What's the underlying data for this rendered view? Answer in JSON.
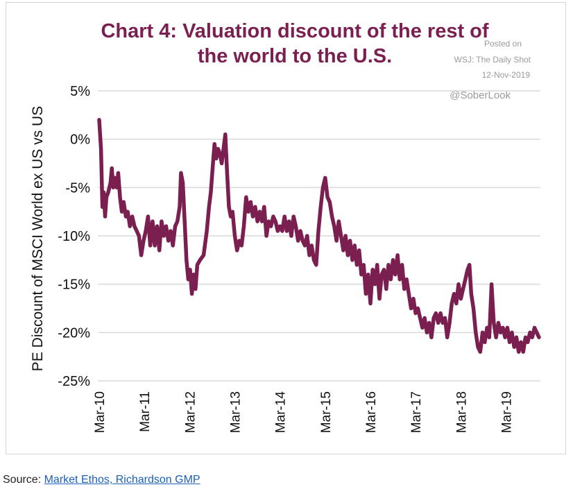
{
  "chart_data": {
    "type": "line",
    "title_lines": [
      "Chart 4: Valuation discount of the rest of",
      "the world to the U.S."
    ],
    "watermark": {
      "posted": "Posted on",
      "outlet": "WSJ: The Daily Shot",
      "date": "12-Nov-2019",
      "handle": "@SoberLook"
    },
    "ylabel": "PE Discount of MSCI World ex US vs US",
    "xlabel": "",
    "ylim": [
      -25,
      5
    ],
    "xlim": [
      2010.17,
      2019.9
    ],
    "y_ticks": [
      5,
      0,
      -5,
      -10,
      -15,
      -20,
      -25
    ],
    "y_tick_labels": [
      "5%",
      "0%",
      "-5%",
      "-10%",
      "-15%",
      "-20%",
      "-25%"
    ],
    "x_ticks": [
      2010.17,
      2011.17,
      2012.17,
      2013.17,
      2014.17,
      2015.17,
      2016.17,
      2017.17,
      2018.17,
      2019.17
    ],
    "x_tick_labels": [
      "Mar-10",
      "Mar-11",
      "Mar-12",
      "Mar-13",
      "Mar-14",
      "Mar-15",
      "Mar-16",
      "Mar-17",
      "Mar-18",
      "Mar-19"
    ],
    "grid": "horizontal",
    "line_color": "#7a1f4f",
    "series": [
      {
        "points": [
          [
            2010.17,
            2.0
          ],
          [
            2010.21,
            -1.0
          ],
          [
            2010.24,
            -7.0
          ],
          [
            2010.27,
            -5.5
          ],
          [
            2010.3,
            -8.0
          ],
          [
            2010.33,
            -6.0
          ],
          [
            2010.37,
            -5.5
          ],
          [
            2010.42,
            -4.5
          ],
          [
            2010.45,
            -3.0
          ],
          [
            2010.48,
            -5.0
          ],
          [
            2010.52,
            -4.0
          ],
          [
            2010.56,
            -5.0
          ],
          [
            2010.59,
            -3.5
          ],
          [
            2010.63,
            -6.0
          ],
          [
            2010.67,
            -7.5
          ],
          [
            2010.71,
            -6.5
          ],
          [
            2010.76,
            -8.0
          ],
          [
            2010.8,
            -7.5
          ],
          [
            2010.85,
            -9.0
          ],
          [
            2010.9,
            -8.0
          ],
          [
            2010.95,
            -9.0
          ],
          [
            2011.0,
            -9.5
          ],
          [
            2011.05,
            -10.0
          ],
          [
            2011.1,
            -12.0
          ],
          [
            2011.15,
            -10.5
          ],
          [
            2011.2,
            -9.5
          ],
          [
            2011.25,
            -8.0
          ],
          [
            2011.3,
            -11.0
          ],
          [
            2011.35,
            -8.5
          ],
          [
            2011.4,
            -11.0
          ],
          [
            2011.45,
            -9.0
          ],
          [
            2011.5,
            -11.5
          ],
          [
            2011.55,
            -8.5
          ],
          [
            2011.6,
            -10.0
          ],
          [
            2011.65,
            -9.0
          ],
          [
            2011.7,
            -10.5
          ],
          [
            2011.75,
            -9.5
          ],
          [
            2011.8,
            -11.0
          ],
          [
            2011.85,
            -9.0
          ],
          [
            2011.9,
            -8.5
          ],
          [
            2011.95,
            -7.0
          ],
          [
            2011.98,
            -3.5
          ],
          [
            2012.02,
            -4.5
          ],
          [
            2012.06,
            -8.5
          ],
          [
            2012.1,
            -12.5
          ],
          [
            2012.14,
            -14.5
          ],
          [
            2012.18,
            -13.5
          ],
          [
            2012.22,
            -16.0
          ],
          [
            2012.26,
            -14.0
          ],
          [
            2012.3,
            -15.5
          ],
          [
            2012.34,
            -13.0
          ],
          [
            2012.4,
            -12.5
          ],
          [
            2012.48,
            -12.0
          ],
          [
            2012.55,
            -9.5
          ],
          [
            2012.6,
            -7.0
          ],
          [
            2012.64,
            -5.5
          ],
          [
            2012.68,
            -3.0
          ],
          [
            2012.72,
            -0.5
          ],
          [
            2012.76,
            -2.0
          ],
          [
            2012.8,
            -1.0
          ],
          [
            2012.84,
            -1.5
          ],
          [
            2012.88,
            -2.5
          ],
          [
            2012.92,
            -1.0
          ],
          [
            2012.96,
            0.5
          ],
          [
            2013.0,
            -3.5
          ],
          [
            2013.04,
            -7.0
          ],
          [
            2013.08,
            -8.0
          ],
          [
            2013.12,
            -7.5
          ],
          [
            2013.17,
            -10.0
          ],
          [
            2013.22,
            -11.5
          ],
          [
            2013.27,
            -10.5
          ],
          [
            2013.32,
            -11.0
          ],
          [
            2013.37,
            -9.0
          ],
          [
            2013.42,
            -6.0
          ],
          [
            2013.47,
            -7.5
          ],
          [
            2013.52,
            -6.5
          ],
          [
            2013.57,
            -8.0
          ],
          [
            2013.62,
            -7.0
          ],
          [
            2013.67,
            -8.5
          ],
          [
            2013.72,
            -7.5
          ],
          [
            2013.77,
            -8.5
          ],
          [
            2013.82,
            -7.0
          ],
          [
            2013.87,
            -10.0
          ],
          [
            2013.92,
            -8.5
          ],
          [
            2013.97,
            -9.0
          ],
          [
            2014.02,
            -8.0
          ],
          [
            2014.07,
            -8.5
          ],
          [
            2014.12,
            -9.5
          ],
          [
            2014.17,
            -9.0
          ],
          [
            2014.22,
            -9.5
          ],
          [
            2014.27,
            -8.0
          ],
          [
            2014.32,
            -9.5
          ],
          [
            2014.37,
            -8.5
          ],
          [
            2014.42,
            -10.0
          ],
          [
            2014.47,
            -8.0
          ],
          [
            2014.52,
            -9.0
          ],
          [
            2014.57,
            -10.5
          ],
          [
            2014.62,
            -9.5
          ],
          [
            2014.67,
            -10.5
          ],
          [
            2014.72,
            -11.0
          ],
          [
            2014.77,
            -10.0
          ],
          [
            2014.82,
            -12.0
          ],
          [
            2014.87,
            -11.0
          ],
          [
            2014.92,
            -12.5
          ],
          [
            2014.97,
            -13.0
          ],
          [
            2015.02,
            -9.5
          ],
          [
            2015.07,
            -7.0
          ],
          [
            2015.12,
            -5.0
          ],
          [
            2015.17,
            -4.0
          ],
          [
            2015.22,
            -6.0
          ],
          [
            2015.27,
            -6.5
          ],
          [
            2015.32,
            -8.0
          ],
          [
            2015.37,
            -9.0
          ],
          [
            2015.42,
            -10.5
          ],
          [
            2015.47,
            -8.5
          ],
          [
            2015.52,
            -10.0
          ],
          [
            2015.57,
            -11.5
          ],
          [
            2015.62,
            -10.0
          ],
          [
            2015.67,
            -12.0
          ],
          [
            2015.72,
            -10.5
          ],
          [
            2015.77,
            -12.5
          ],
          [
            2015.82,
            -11.0
          ],
          [
            2015.87,
            -13.0
          ],
          [
            2015.92,
            -11.5
          ],
          [
            2015.97,
            -14.0
          ],
          [
            2016.02,
            -13.0
          ],
          [
            2016.07,
            -16.0
          ],
          [
            2016.12,
            -14.0
          ],
          [
            2016.17,
            -17.0
          ],
          [
            2016.22,
            -13.5
          ],
          [
            2016.27,
            -15.0
          ],
          [
            2016.32,
            -13.0
          ],
          [
            2016.37,
            -16.5
          ],
          [
            2016.42,
            -14.0
          ],
          [
            2016.47,
            -13.5
          ],
          [
            2016.52,
            -15.5
          ],
          [
            2016.57,
            -13.0
          ],
          [
            2016.62,
            -14.5
          ],
          [
            2016.67,
            -12.5
          ],
          [
            2016.72,
            -14.0
          ],
          [
            2016.77,
            -12.0
          ],
          [
            2016.82,
            -14.5
          ],
          [
            2016.87,
            -13.0
          ],
          [
            2016.92,
            -15.5
          ],
          [
            2016.97,
            -14.5
          ],
          [
            2017.02,
            -16.0
          ],
          [
            2017.07,
            -17.5
          ],
          [
            2017.12,
            -16.5
          ],
          [
            2017.17,
            -18.0
          ],
          [
            2017.22,
            -17.5
          ],
          [
            2017.27,
            -18.5
          ],
          [
            2017.32,
            -19.5
          ],
          [
            2017.37,
            -18.5
          ],
          [
            2017.42,
            -20.0
          ],
          [
            2017.47,
            -19.0
          ],
          [
            2017.52,
            -20.5
          ],
          [
            2017.57,
            -18.5
          ],
          [
            2017.62,
            -18.0
          ],
          [
            2017.67,
            -19.0
          ],
          [
            2017.72,
            -18.0
          ],
          [
            2017.77,
            -19.0
          ],
          [
            2017.82,
            -18.5
          ],
          [
            2017.87,
            -20.5
          ],
          [
            2017.92,
            -19.0
          ],
          [
            2017.97,
            -17.0
          ],
          [
            2018.02,
            -16.0
          ],
          [
            2018.07,
            -17.0
          ],
          [
            2018.12,
            -15.0
          ],
          [
            2018.17,
            -16.5
          ],
          [
            2018.22,
            -15.5
          ],
          [
            2018.27,
            -14.5
          ],
          [
            2018.32,
            -13.5
          ],
          [
            2018.36,
            -13.0
          ],
          [
            2018.4,
            -16.0
          ],
          [
            2018.45,
            -17.5
          ],
          [
            2018.5,
            -20.0
          ],
          [
            2018.55,
            -21.5
          ],
          [
            2018.6,
            -22.0
          ],
          [
            2018.65,
            -20.0
          ],
          [
            2018.7,
            -21.0
          ],
          [
            2018.75,
            -19.5
          ],
          [
            2018.8,
            -20.5
          ],
          [
            2018.85,
            -15.0
          ],
          [
            2018.9,
            -19.0
          ],
          [
            2018.95,
            -20.5
          ],
          [
            2019.0,
            -19.0
          ],
          [
            2019.05,
            -20.0
          ],
          [
            2019.1,
            -19.5
          ],
          [
            2019.15,
            -20.5
          ],
          [
            2019.2,
            -19.5
          ],
          [
            2019.25,
            -21.0
          ],
          [
            2019.3,
            -20.0
          ],
          [
            2019.35,
            -21.5
          ],
          [
            2019.4,
            -20.5
          ],
          [
            2019.45,
            -22.0
          ],
          [
            2019.5,
            -21.0
          ],
          [
            2019.55,
            -22.0
          ],
          [
            2019.6,
            -20.5
          ],
          [
            2019.65,
            -21.0
          ],
          [
            2019.7,
            -20.0
          ],
          [
            2019.75,
            -20.5
          ],
          [
            2019.8,
            -19.5
          ],
          [
            2019.85,
            -20.0
          ],
          [
            2019.9,
            -20.5
          ]
        ]
      }
    ]
  },
  "source": {
    "label": "Source:",
    "link_text": "Market Ethos, Richardson GMP"
  }
}
